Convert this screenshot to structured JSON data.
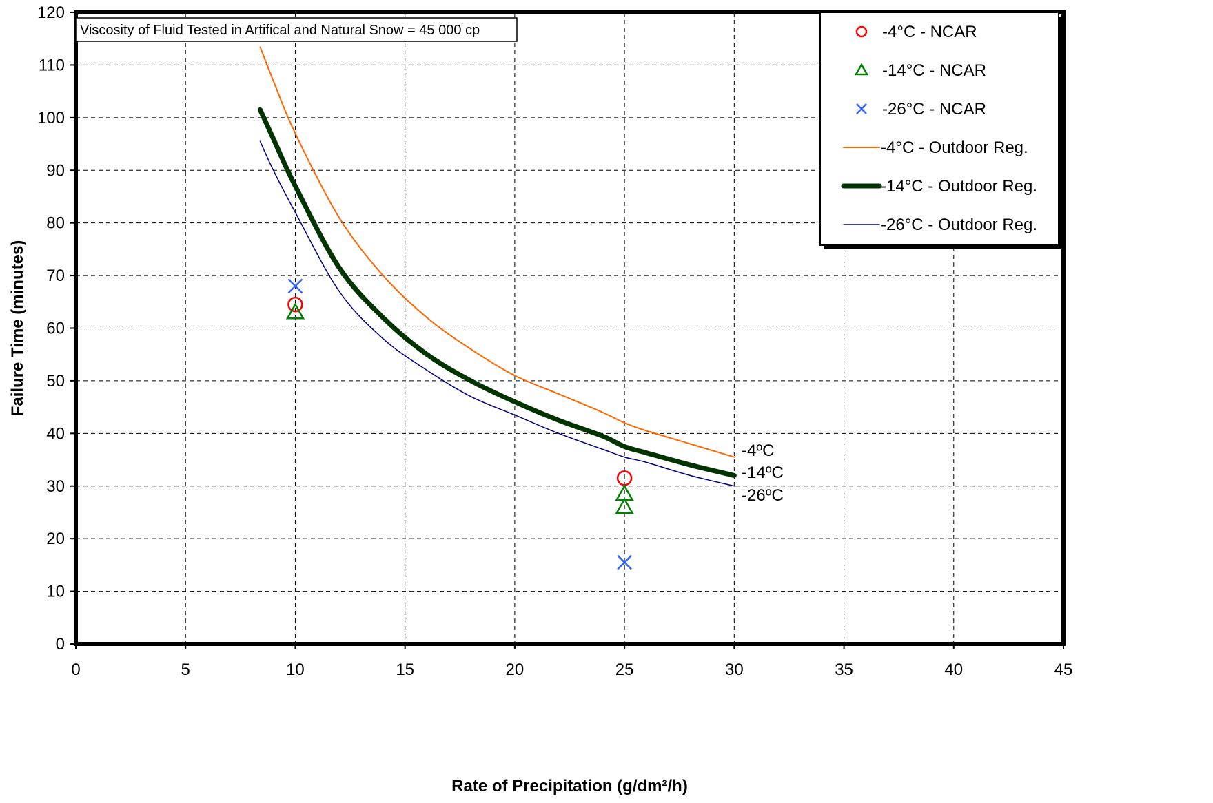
{
  "chart_data": {
    "type": "scatter",
    "title": "",
    "xlabel": "Rate of Precipitation (g/dm²/h)",
    "ylabel": "Failure Time (minutes)",
    "xlim": [
      0,
      45
    ],
    "ylim": [
      0,
      120
    ],
    "xticks": [
      0,
      5,
      10,
      15,
      20,
      25,
      30,
      35,
      40,
      45
    ],
    "yticks": [
      0,
      10,
      20,
      30,
      40,
      50,
      60,
      70,
      80,
      90,
      100,
      110,
      120
    ],
    "grid": true,
    "legend_position": "top-right",
    "annotation": "Viscosity of Fluid Tested in Artifical and Natural Snow = 45 000 cp",
    "series": [
      {
        "name": "-4°C - NCAR",
        "kind": "scatter",
        "marker": "circle",
        "color": "#ff0000",
        "points": [
          [
            10,
            64.5
          ],
          [
            25,
            31.5
          ]
        ]
      },
      {
        "name": "-14°C - NCAR",
        "kind": "scatter",
        "marker": "triangle",
        "color": "#008000",
        "points": [
          [
            10,
            63
          ],
          [
            25,
            28.5
          ],
          [
            25,
            26
          ]
        ]
      },
      {
        "name": "-26°C - NCAR",
        "kind": "scatter",
        "marker": "x",
        "color": "#3366ff",
        "points": [
          [
            10,
            68
          ],
          [
            25,
            15.5
          ]
        ]
      },
      {
        "name": "-4°C - Outdoor Reg.",
        "kind": "line",
        "color": "#ff6600",
        "width": 2,
        "points": [
          [
            8.4,
            113.4
          ],
          [
            9,
            107
          ],
          [
            10,
            97
          ],
          [
            12,
            81
          ],
          [
            14,
            70
          ],
          [
            16,
            62
          ],
          [
            18,
            56
          ],
          [
            20,
            51
          ],
          [
            22,
            47.5
          ],
          [
            24,
            44
          ],
          [
            25,
            42
          ],
          [
            26,
            40.5
          ],
          [
            28,
            38
          ],
          [
            30,
            35.5
          ]
        ],
        "end_label": "-4ºC"
      },
      {
        "name": "-14°C - Outdoor Reg.",
        "kind": "line",
        "color": "#003300",
        "width": 7,
        "points": [
          [
            8.4,
            101.5
          ],
          [
            9,
            96
          ],
          [
            10,
            87
          ],
          [
            12,
            71.5
          ],
          [
            14,
            62
          ],
          [
            16,
            55
          ],
          [
            18,
            50
          ],
          [
            20,
            46
          ],
          [
            22,
            42.5
          ],
          [
            24,
            39.5
          ],
          [
            25,
            37.5
          ],
          [
            26,
            36.3
          ],
          [
            28,
            34
          ],
          [
            30,
            32
          ]
        ],
        "end_label": "-14ºC"
      },
      {
        "name": "-26°C - Outdoor Reg.",
        "kind": "line",
        "color": "#000080",
        "width": 1.5,
        "points": [
          [
            8.4,
            95.5
          ],
          [
            9,
            90
          ],
          [
            10,
            82
          ],
          [
            12,
            67
          ],
          [
            14,
            58
          ],
          [
            16,
            52
          ],
          [
            18,
            47
          ],
          [
            20,
            43.5
          ],
          [
            22,
            40
          ],
          [
            24,
            37
          ],
          [
            25,
            35.5
          ],
          [
            26,
            34.5
          ],
          [
            28,
            32
          ],
          [
            30,
            30
          ]
        ],
        "end_label": "-26ºC"
      }
    ]
  }
}
